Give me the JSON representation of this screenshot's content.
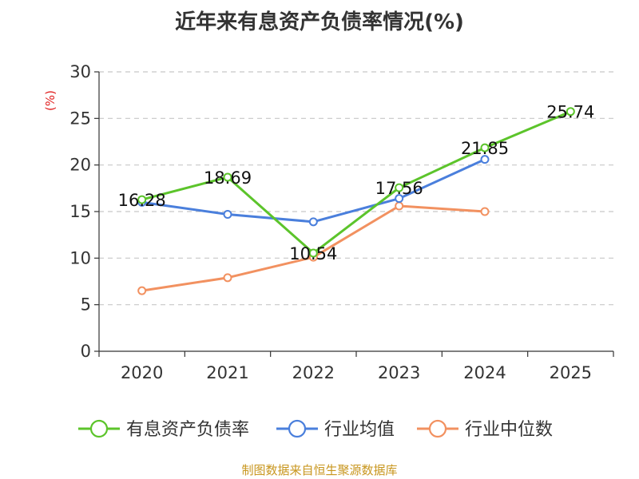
{
  "chart_data": {
    "type": "line",
    "title": "近年来有息资产负债率情况(%)",
    "ylabel": "(%)",
    "categories": [
      "2020",
      "2021",
      "2022",
      "2023",
      "2024",
      "2025"
    ],
    "ylim": [
      0,
      30
    ],
    "yticks": [
      0,
      5,
      10,
      15,
      20,
      25,
      30
    ],
    "grid": true,
    "legend_position": "bottom",
    "series": [
      {
        "name": "有息资产负债率",
        "color": "#5cc42b",
        "values": [
          16.28,
          18.69,
          10.54,
          17.56,
          21.85,
          25.74
        ],
        "labels": [
          "16.28",
          "18.69",
          "10.54",
          "17.56",
          "21.85",
          "25.74"
        ]
      },
      {
        "name": "行业均值",
        "color": "#4a7fdc",
        "values": [
          16.0,
          14.7,
          13.9,
          16.4,
          20.6,
          null
        ]
      },
      {
        "name": "行业中位数",
        "color": "#f29160",
        "values": [
          6.5,
          7.9,
          10.1,
          15.6,
          15.0,
          null
        ]
      }
    ]
  },
  "source": "制图数据来自恒生聚源数据库"
}
